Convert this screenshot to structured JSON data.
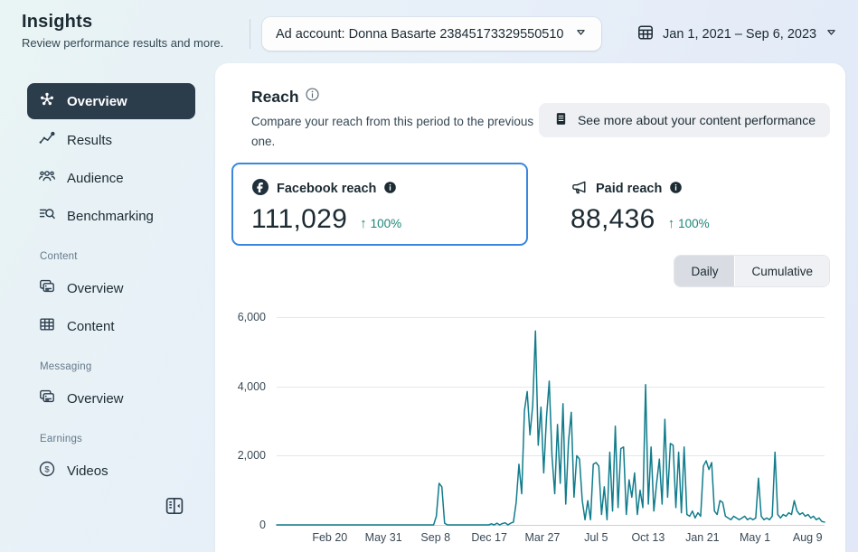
{
  "header": {
    "title": "Insights",
    "subtitle": "Review performance results and more.",
    "ad_account": {
      "label": "Ad account: Donna Basarte 23845173329550510"
    },
    "date_range": {
      "label": "Jan 1, 2021 – Sep 6, 2023"
    }
  },
  "sidebar": {
    "main_items": [
      {
        "label": "Overview",
        "selected": true
      },
      {
        "label": "Results",
        "selected": false
      },
      {
        "label": "Audience",
        "selected": false
      },
      {
        "label": "Benchmarking",
        "selected": false
      }
    ],
    "sections": [
      {
        "heading": "Content",
        "items": [
          {
            "label": "Overview"
          },
          {
            "label": "Content"
          }
        ]
      },
      {
        "heading": "Messaging",
        "items": [
          {
            "label": "Overview"
          }
        ]
      },
      {
        "heading": "Earnings",
        "items": [
          {
            "label": "Videos"
          }
        ]
      }
    ]
  },
  "main": {
    "section_title": "Reach",
    "section_description": "Compare your reach from this period to the previous one.",
    "see_more_button": "See more about your content performance",
    "metrics": [
      {
        "label": "Facebook reach",
        "value": "111,029",
        "change": "100%",
        "direction": "up",
        "selected": true
      },
      {
        "label": "Paid reach",
        "value": "88,436",
        "change": "100%",
        "direction": "up",
        "selected": false
      }
    ],
    "toggle": {
      "options": [
        "Daily",
        "Cumulative"
      ],
      "selected": "Daily"
    }
  },
  "icons": {
    "up_arrow": "↑"
  },
  "colors": {
    "line_teal": "#107c8c",
    "positive_teal": "#1d8678",
    "selected_card_border": "#3a87dd",
    "nav_selected_bg": "#2b3c4b"
  },
  "chart_data": {
    "type": "line",
    "title": "Daily reach, Jan 1 2021 – Sep 6 2023",
    "series_name": "Facebook reach (Daily)",
    "color": "#107c8c",
    "grid": true,
    "legend": false,
    "ylim": [
      0,
      6000
    ],
    "yticks": [
      0,
      2000,
      4000,
      6000
    ],
    "ytick_labels": [
      "0",
      "2,000",
      "4,000",
      "6,000"
    ],
    "xticks": [
      {
        "label": "Feb 20",
        "pos": 0.097
      },
      {
        "label": "May 31",
        "pos": 0.195
      },
      {
        "label": "Sep 8",
        "pos": 0.29
      },
      {
        "label": "Dec 17",
        "pos": 0.388
      },
      {
        "label": "Mar 27",
        "pos": 0.485
      },
      {
        "label": "Jul 5",
        "pos": 0.583
      },
      {
        "label": "Oct 13",
        "pos": 0.678
      },
      {
        "label": "Jan 21",
        "pos": 0.777
      },
      {
        "label": "May 1",
        "pos": 0.873
      },
      {
        "label": "Aug 9",
        "pos": 0.969
      }
    ],
    "values": [
      0,
      0,
      0,
      0,
      0,
      0,
      0,
      0,
      0,
      0,
      0,
      0,
      0,
      0,
      0,
      0,
      0,
      0,
      0,
      0,
      0,
      0,
      0,
      0,
      0,
      0,
      0,
      0,
      0,
      0,
      0,
      0,
      0,
      0,
      0,
      0,
      0,
      0,
      0,
      0,
      0,
      0,
      0,
      0,
      0,
      0,
      0,
      0,
      0,
      0,
      0,
      0,
      0,
      0,
      0,
      0,
      0,
      0,
      250,
      1200,
      1100,
      50,
      0,
      0,
      0,
      0,
      0,
      0,
      0,
      0,
      0,
      0,
      0,
      0,
      0,
      0,
      0,
      0,
      30,
      0,
      50,
      0,
      40,
      60,
      0,
      50,
      80,
      650,
      1750,
      900,
      3300,
      3850,
      2600,
      3450,
      5600,
      2300,
      3400,
      1500,
      3100,
      4150,
      2000,
      900,
      2900,
      1200,
      3500,
      600,
      2400,
      3250,
      800,
      2000,
      1900,
      700,
      150,
      700,
      150,
      1750,
      1800,
      1700,
      300,
      1100,
      150,
      2100,
      400,
      2850,
      500,
      2200,
      2250,
      300,
      1300,
      800,
      1500,
      300,
      1000,
      500,
      4050,
      600,
      2250,
      400,
      1200,
      1900,
      600,
      3050,
      800,
      2350,
      2300,
      500,
      2100,
      350,
      2250,
      300,
      250,
      400,
      200,
      350,
      250,
      1700,
      1850,
      1600,
      1800,
      400,
      300,
      700,
      650,
      250,
      200,
      150,
      250,
      200,
      150,
      200,
      250,
      150,
      200,
      150,
      200,
      1350,
      250,
      150,
      200,
      150,
      250,
      2100,
      300,
      200,
      300,
      250,
      350,
      300,
      700,
      400,
      300,
      350,
      250,
      300,
      200,
      250,
      150,
      200,
      100,
      80
    ]
  }
}
